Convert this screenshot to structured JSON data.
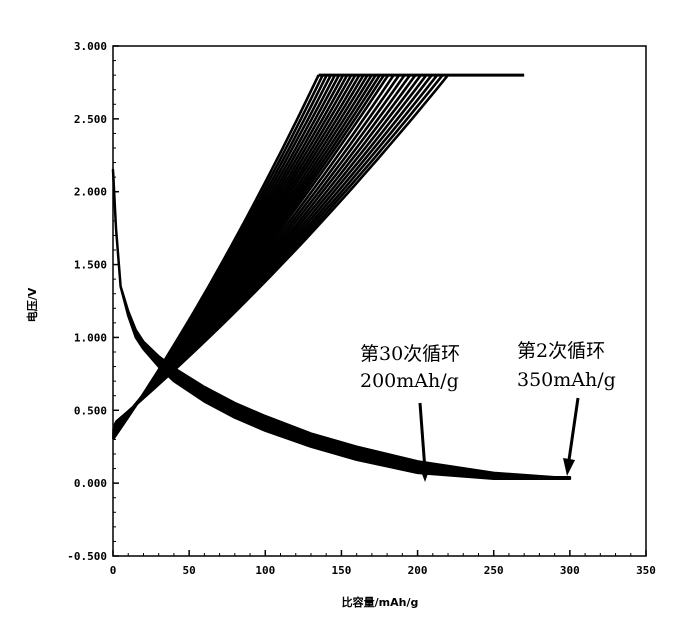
{
  "chart_data": {
    "type": "line",
    "title": "",
    "xlabel": "比容量/mAh/g",
    "ylabel": "电压/V",
    "xlim": [
      0,
      350
    ],
    "ylim": [
      -0.5,
      3.0
    ],
    "x_ticks": [
      "0",
      "50",
      "100",
      "150",
      "200",
      "250",
      "300",
      "350"
    ],
    "y_ticks": [
      "3.000",
      "2.500",
      "2.000",
      "1.500",
      "1.000",
      "0.500",
      "0.000",
      "-0.500"
    ],
    "grid": false,
    "legend": "none",
    "series": [
      {
        "role": "discharge",
        "cycles": "2-30",
        "x": [
          0,
          2,
          5,
          10,
          15,
          20,
          30,
          40,
          60,
          80,
          100,
          130,
          160,
          200,
          250,
          290,
          300
        ],
        "values_upper": [
          2.15,
          1.75,
          1.35,
          1.18,
          1.05,
          0.97,
          0.87,
          0.79,
          0.66,
          0.55,
          0.46,
          0.34,
          0.25,
          0.15,
          0.07,
          0.04,
          0.04
        ],
        "values_lower": [
          2.15,
          1.75,
          1.35,
          1.15,
          1.0,
          0.92,
          0.8,
          0.7,
          0.56,
          0.45,
          0.36,
          0.25,
          0.16,
          0.07,
          0.03,
          0.03,
          0.03
        ]
      },
      {
        "role": "charge",
        "cycles": "2-30",
        "x_start": [
          0,
          0,
          0,
          1,
          1,
          2
        ],
        "y_start": [
          0.3,
          0.33,
          0.36,
          0.38,
          0.4,
          0.42
        ],
        "x_end": [
          135,
          150,
          165,
          180,
          200,
          220
        ],
        "y_end": [
          2.8,
          2.8,
          2.8,
          2.8,
          2.8,
          2.8
        ],
        "plateau_end_x": 270
      }
    ],
    "annotations": [
      {
        "line1": "第30次循环",
        "line2": "200mAh/g",
        "x": 201,
        "y": 0.03
      },
      {
        "line1": "第2次循环",
        "line2": "350mAh/g",
        "x": 298,
        "y": 0.06
      }
    ]
  }
}
